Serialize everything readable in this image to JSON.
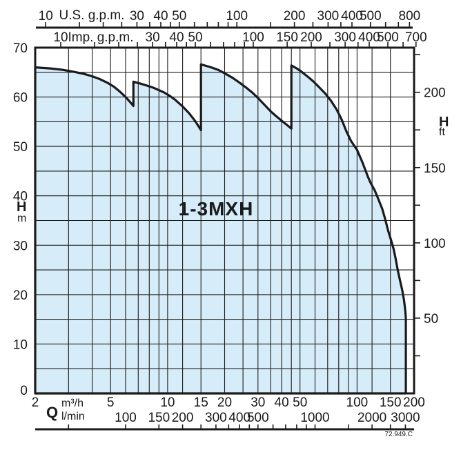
{
  "titles": {
    "us_gpm": "U.S. g.p.m.",
    "imp_gpm": "Imp. g.p.m."
  },
  "labels": {
    "q": "Q",
    "m3h": "m³/h",
    "lmin": "l/min",
    "h_left": "H",
    "m": "m",
    "h_right": "H",
    "ft": "ft"
  },
  "envelope_label": "1-3MXH",
  "doc_number": "72.949.C",
  "colors": {
    "envelope_fill": "#d6ecf9",
    "ink": "#1a1a1a"
  },
  "chart_data": {
    "type": "area",
    "title": "1-3MXH",
    "description": "Operating range envelope (flow Q vs head H) of the 1-3MXH pump family; sawtooth upper boundary with drops at Q ≈ 6.6, 15 and 45 m³/h, right limit at Q ≈ 180 m³/h",
    "x_scale": "log",
    "q_m3h_range": [
      2,
      200
    ],
    "h_m_range": [
      0,
      70
    ],
    "axis_m3h": {
      "gridlines": [
        3,
        4,
        5,
        6,
        7,
        8,
        9,
        10,
        12,
        15,
        20,
        25,
        30,
        35,
        40,
        45,
        50,
        60,
        70,
        80,
        90,
        100,
        120,
        150
      ],
      "labels": [
        2,
        5,
        10,
        15,
        20,
        30,
        40,
        50,
        100,
        150,
        200
      ]
    },
    "axis_h_m": {
      "grid_step": 5,
      "labels": [
        70,
        60,
        50,
        40,
        30,
        20,
        10,
        0
      ]
    },
    "axis_us_gpm": {
      "ticks": [
        10,
        15,
        20,
        25,
        30,
        35,
        40,
        45,
        50,
        60,
        70,
        80,
        90,
        100,
        150,
        200,
        250,
        300,
        350,
        400,
        500,
        600,
        700,
        800
      ],
      "labels": [
        10,
        30,
        40,
        50,
        100,
        200,
        300,
        400,
        500,
        800
      ]
    },
    "axis_imp_gpm": {
      "ticks": [
        10,
        15,
        20,
        25,
        30,
        35,
        40,
        45,
        50,
        60,
        70,
        80,
        90,
        100,
        150,
        200,
        250,
        300,
        350,
        400,
        500,
        600,
        700
      ],
      "labels": [
        10,
        30,
        40,
        50,
        100,
        150,
        200,
        300,
        400,
        500,
        700
      ]
    },
    "axis_lmin": {
      "ticks": [
        50,
        100,
        150,
        200,
        250,
        300,
        350,
        400,
        450,
        500,
        600,
        700,
        800,
        900,
        1000,
        1500,
        2000,
        2500,
        3000
      ],
      "labels": [
        100,
        150,
        200,
        300,
        400,
        500,
        1000,
        2000,
        3000
      ]
    },
    "axis_h_ft": {
      "ticks": [
        25,
        50,
        75,
        100,
        125,
        150,
        175,
        200,
        225
      ],
      "labels": [
        50,
        100,
        150,
        200
      ]
    },
    "envelope_q_h": [
      [
        2,
        66
      ],
      [
        2.4,
        65.8
      ],
      [
        2.8,
        65.5
      ],
      [
        3.2,
        65.1
      ],
      [
        3.6,
        64.7
      ],
      [
        4,
        64.2
      ],
      [
        4.4,
        63.6
      ],
      [
        4.8,
        62.9
      ],
      [
        5.2,
        62.1
      ],
      [
        5.6,
        61.1
      ],
      [
        6,
        60
      ],
      [
        6.3,
        59.1
      ],
      [
        6.6,
        58.2
      ],
      [
        6.6,
        63.1
      ],
      [
        7.2,
        62.7
      ],
      [
        7.8,
        62.3
      ],
      [
        8.4,
        61.9
      ],
      [
        9,
        61.4
      ],
      [
        9.6,
        60.9
      ],
      [
        10.3,
        60.2
      ],
      [
        11,
        59.4
      ],
      [
        12,
        58.1
      ],
      [
        13,
        56.7
      ],
      [
        14,
        55.1
      ],
      [
        15,
        53.3
      ],
      [
        15,
        66.6
      ],
      [
        16,
        66.3
      ],
      [
        17,
        66
      ],
      [
        18.5,
        65.5
      ],
      [
        20,
        64.8
      ],
      [
        22,
        63.9
      ],
      [
        24,
        62.9
      ],
      [
        26,
        61.9
      ],
      [
        28,
        60.9
      ],
      [
        30,
        59.8
      ],
      [
        32.5,
        58.4
      ],
      [
        35,
        57.1
      ],
      [
        37.5,
        56.1
      ],
      [
        40,
        55.2
      ],
      [
        42.5,
        54.4
      ],
      [
        45,
        53.6
      ],
      [
        45,
        66.4
      ],
      [
        48,
        65.8
      ],
      [
        51,
        65.1
      ],
      [
        55,
        64.1
      ],
      [
        59,
        63.1
      ],
      [
        63,
        62
      ],
      [
        68,
        60.7
      ],
      [
        73,
        59.2
      ],
      [
        78,
        57.5
      ],
      [
        83,
        55.4
      ],
      [
        88,
        53
      ],
      [
        93,
        51.1
      ],
      [
        100,
        49.3
      ],
      [
        107,
        46.7
      ],
      [
        114,
        43.9
      ],
      [
        118,
        42.6
      ],
      [
        124,
        41.1
      ],
      [
        130,
        39.2
      ],
      [
        136,
        37.3
      ],
      [
        141,
        35.2
      ],
      [
        146,
        32.9
      ],
      [
        151,
        31.1
      ],
      [
        156,
        29.2
      ],
      [
        160,
        27.2
      ],
      [
        164,
        25
      ],
      [
        169,
        22.7
      ],
      [
        173,
        21
      ],
      [
        177,
        18.9
      ],
      [
        180,
        16.6
      ],
      [
        181,
        15.2
      ],
      [
        181,
        0
      ]
    ]
  }
}
